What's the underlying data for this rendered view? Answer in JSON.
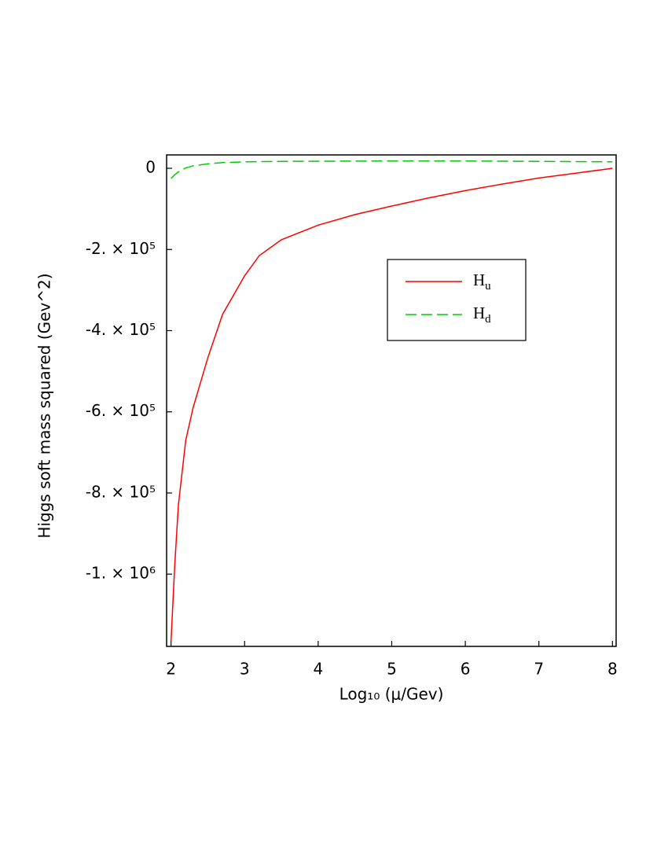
{
  "chart_data": {
    "type": "line",
    "x_label": "Log₁₀ (μ/Gev)",
    "y_label": "Higgs soft mass squared (Gev^2)",
    "xlim": [
      1.94,
      8.05
    ],
    "ylim": [
      -1178000,
      33000
    ],
    "xticks": [
      2,
      3,
      4,
      5,
      6,
      7,
      8
    ],
    "yticks": [
      0,
      {
        "value": -200000,
        "label": "-2. × 10⁵"
      },
      {
        "value": -400000,
        "label": "-4. × 10⁵"
      },
      {
        "value": -600000,
        "label": "-6. × 10⁵"
      },
      {
        "value": -800000,
        "label": "-8. × 10⁵"
      },
      {
        "value": -1000000,
        "label": "-1. × 10⁶"
      }
    ],
    "series": [
      {
        "name": "Hu",
        "color": "#ff0000",
        "dash": false,
        "x": [
          2,
          2.05,
          2.1,
          2.2,
          2.3,
          2.5,
          2.7,
          3,
          3.2,
          3.5,
          4,
          4.5,
          5,
          5.5,
          6,
          6.5,
          7,
          7.5,
          8
        ],
        "values": [
          -1165000,
          -980000,
          -830000,
          -670000,
          -590000,
          -467000,
          -360000,
          -265000,
          -215000,
          -176000,
          -140000,
          -114000,
          -93000,
          -73000,
          -55000,
          -39000,
          -24000,
          -12000,
          0
        ]
      },
      {
        "name": "Hd",
        "color": "#00cc00",
        "dash": true,
        "x": [
          2,
          2.05,
          2.1,
          2.2,
          2.3,
          2.5,
          2.7,
          3,
          3.5,
          4,
          5,
          6,
          7,
          8
        ],
        "values": [
          -25000,
          -16000,
          -9000,
          1000,
          6000,
          11000,
          14000,
          16000,
          17000,
          17500,
          18000,
          18000,
          17000,
          16000
        ]
      }
    ]
  }
}
